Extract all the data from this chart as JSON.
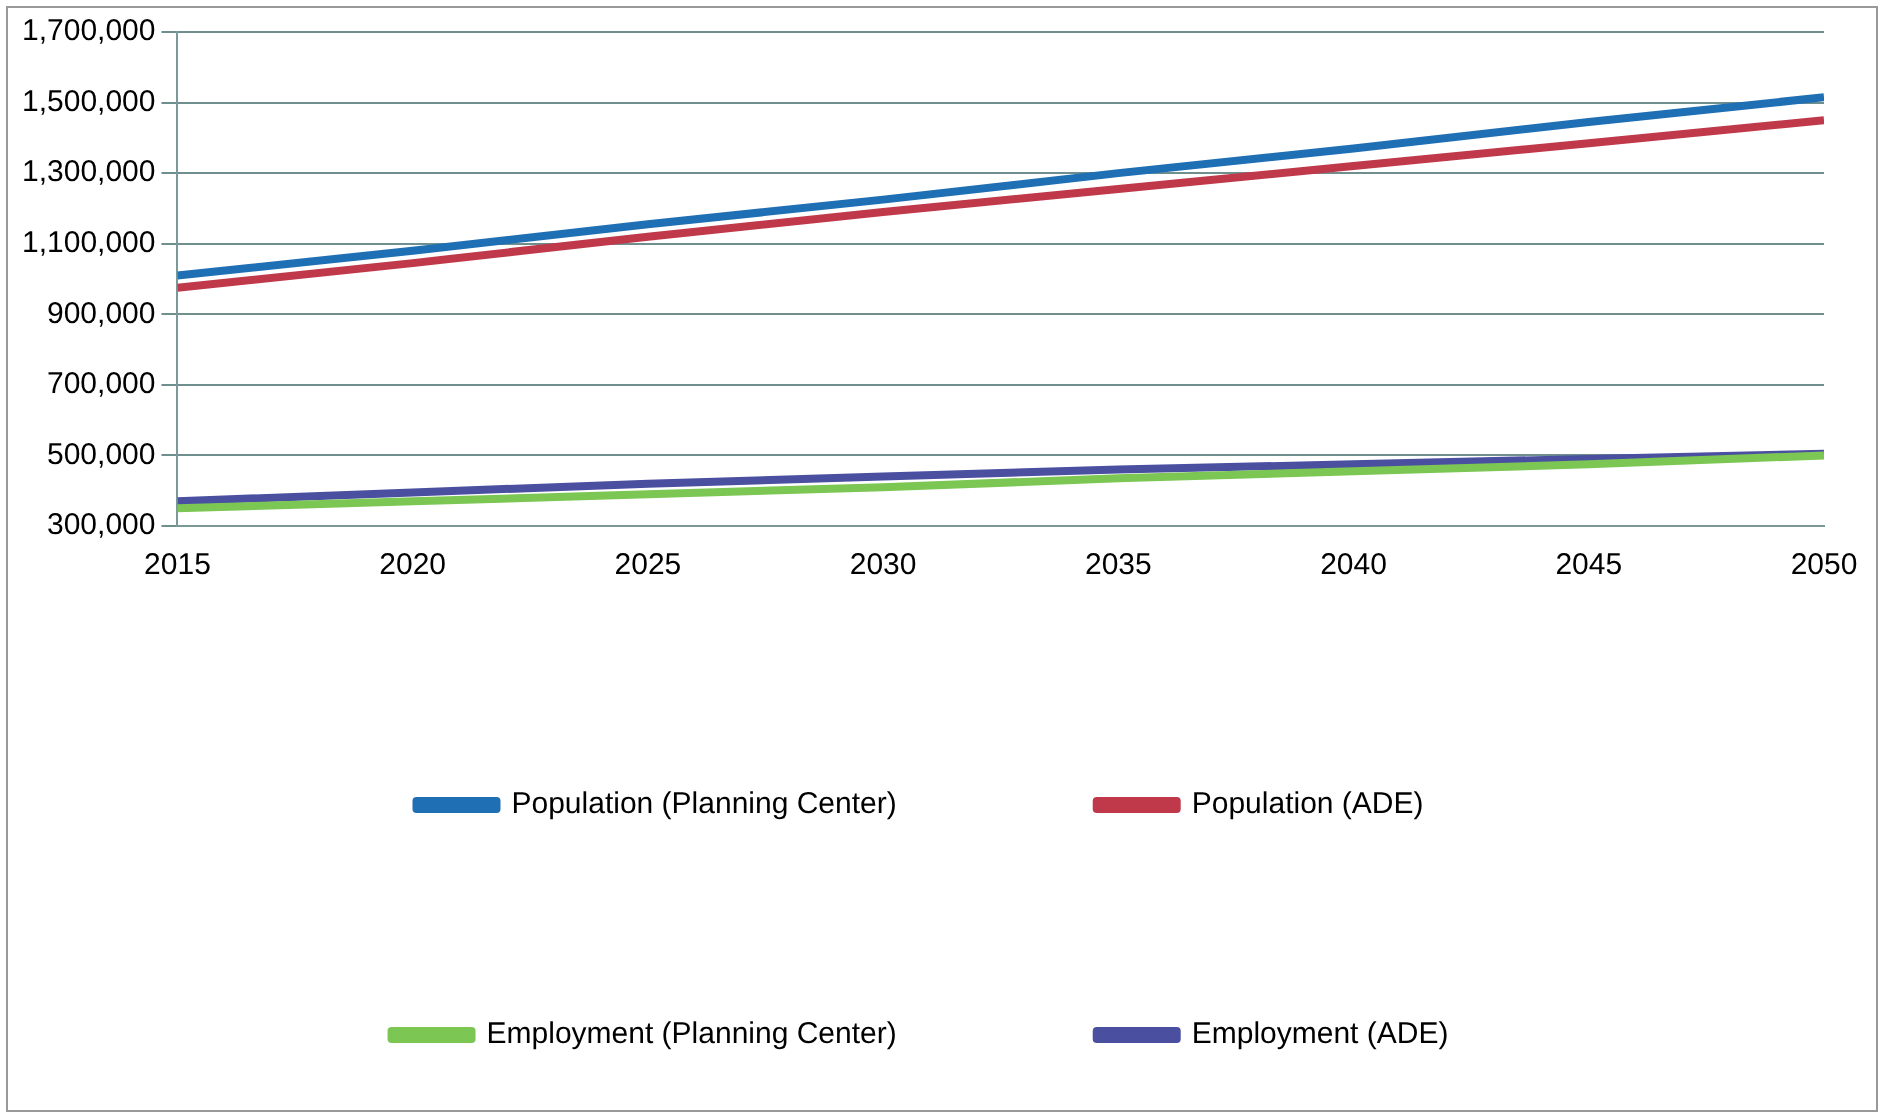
{
  "chart_data": {
    "type": "line",
    "x": [
      2015,
      2020,
      2025,
      2030,
      2035,
      2040,
      2045,
      2050
    ],
    "series": [
      {
        "name": "Population (Planning Center)",
        "color": "#1f6fb5",
        "values": [
          1010000,
          1080000,
          1155000,
          1225000,
          1300000,
          1370000,
          1445000,
          1515000
        ]
      },
      {
        "name": "Population (ADE)",
        "color": "#c0394b",
        "values": [
          975000,
          1045000,
          1120000,
          1190000,
          1255000,
          1320000,
          1385000,
          1450000
        ]
      },
      {
        "name": "Employment (Planning Center)",
        "color": "#7cc653",
        "values": [
          350000,
          370000,
          390000,
          410000,
          435000,
          455000,
          475000,
          500000
        ]
      },
      {
        "name": "Employment (ADE)",
        "color": "#4a4fa0",
        "values": [
          370000,
          395000,
          420000,
          440000,
          460000,
          475000,
          490000,
          505000
        ]
      }
    ],
    "xlim": [
      2015,
      2050
    ],
    "xticks": [
      2015,
      2020,
      2025,
      2030,
      2035,
      2040,
      2045,
      2050
    ],
    "ylim": [
      300000,
      1700000
    ],
    "yticks": [
      {
        "value": 300000,
        "label": "300,000"
      },
      {
        "value": 500000,
        "label": "500,000"
      },
      {
        "value": 700000,
        "label": "700,000"
      },
      {
        "value": 900000,
        "label": "900,000"
      },
      {
        "value": 1100000,
        "label": "1,100,000"
      },
      {
        "value": 1300000,
        "label": "1,300,000"
      },
      {
        "value": 1500000,
        "label": "1,500,000"
      },
      {
        "value": 1700000,
        "label": "1,700,000"
      }
    ],
    "grid": "y",
    "legend": "bottom",
    "marker": "none",
    "line_style": "solid"
  }
}
